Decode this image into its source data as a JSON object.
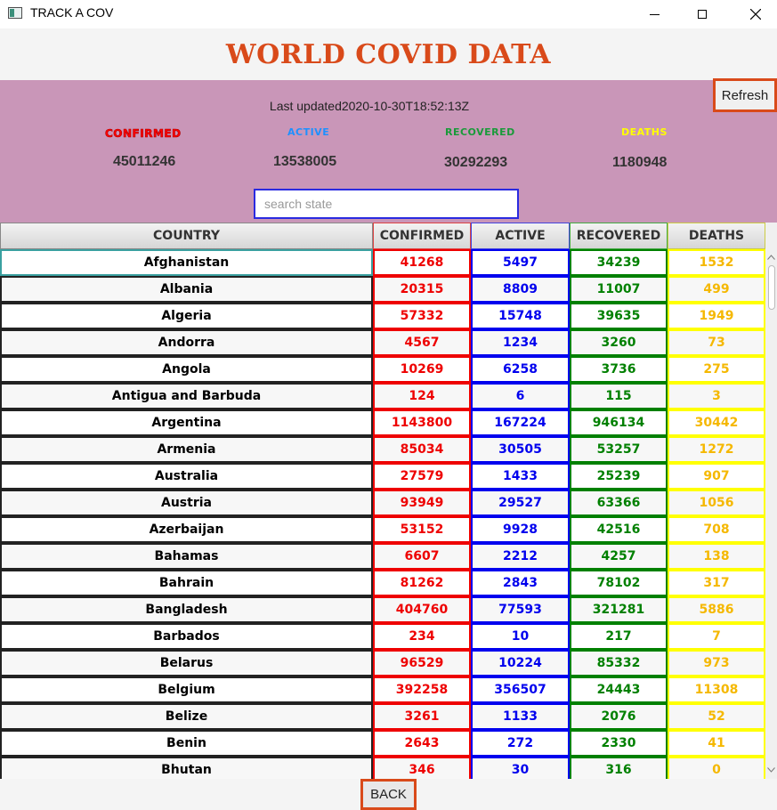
{
  "window": {
    "title": "TRACK A COV"
  },
  "header": {
    "title": "WORLD COVID DATA"
  },
  "toolbar": {
    "refresh_label": "Refresh"
  },
  "stats": {
    "last_updated": "Last updated2020-10-30T18:52:13Z",
    "confirmed": {
      "label": "CONFIRMED",
      "value": "45011246",
      "color": "#ff0000"
    },
    "active": {
      "label": "ACTIVE",
      "value": "13538005",
      "color": "#1e90ff"
    },
    "recovered": {
      "label": "RECOVERED",
      "value": "30292293",
      "color": "#1a9a3a"
    },
    "deaths": {
      "label": "DEATHS",
      "value": "1180948",
      "color": "#ffff00"
    }
  },
  "search": {
    "placeholder": "search state",
    "value": ""
  },
  "table": {
    "columns": [
      "COUNTRY",
      "CONFIRMED",
      "ACTIVE",
      "RECOVERED",
      "DEATHS"
    ],
    "column_colors": {
      "country": "#000000",
      "confirmed": "#ee0000",
      "active": "#0000ee",
      "recovered": "#008000",
      "deaths": "#f5b800"
    },
    "rows": [
      [
        "Afghanistan",
        "41268",
        "5497",
        "34239",
        "1532"
      ],
      [
        "Albania",
        "20315",
        "8809",
        "11007",
        "499"
      ],
      [
        "Algeria",
        "57332",
        "15748",
        "39635",
        "1949"
      ],
      [
        "Andorra",
        "4567",
        "1234",
        "3260",
        "73"
      ],
      [
        "Angola",
        "10269",
        "6258",
        "3736",
        "275"
      ],
      [
        "Antigua and Barbuda",
        "124",
        "6",
        "115",
        "3"
      ],
      [
        "Argentina",
        "1143800",
        "167224",
        "946134",
        "30442"
      ],
      [
        "Armenia",
        "85034",
        "30505",
        "53257",
        "1272"
      ],
      [
        "Australia",
        "27579",
        "1433",
        "25239",
        "907"
      ],
      [
        "Austria",
        "93949",
        "29527",
        "63366",
        "1056"
      ],
      [
        "Azerbaijan",
        "53152",
        "9928",
        "42516",
        "708"
      ],
      [
        "Bahamas",
        "6607",
        "2212",
        "4257",
        "138"
      ],
      [
        "Bahrain",
        "81262",
        "2843",
        "78102",
        "317"
      ],
      [
        "Bangladesh",
        "404760",
        "77593",
        "321281",
        "5886"
      ],
      [
        "Barbados",
        "234",
        "10",
        "217",
        "7"
      ],
      [
        "Belarus",
        "96529",
        "10224",
        "85332",
        "973"
      ],
      [
        "Belgium",
        "392258",
        "356507",
        "24443",
        "11308"
      ],
      [
        "Belize",
        "3261",
        "1133",
        "2076",
        "52"
      ],
      [
        "Benin",
        "2643",
        "272",
        "2330",
        "41"
      ],
      [
        "Bhutan",
        "346",
        "30",
        "316",
        "0"
      ]
    ]
  },
  "footer": {
    "back_label": "BACK"
  }
}
